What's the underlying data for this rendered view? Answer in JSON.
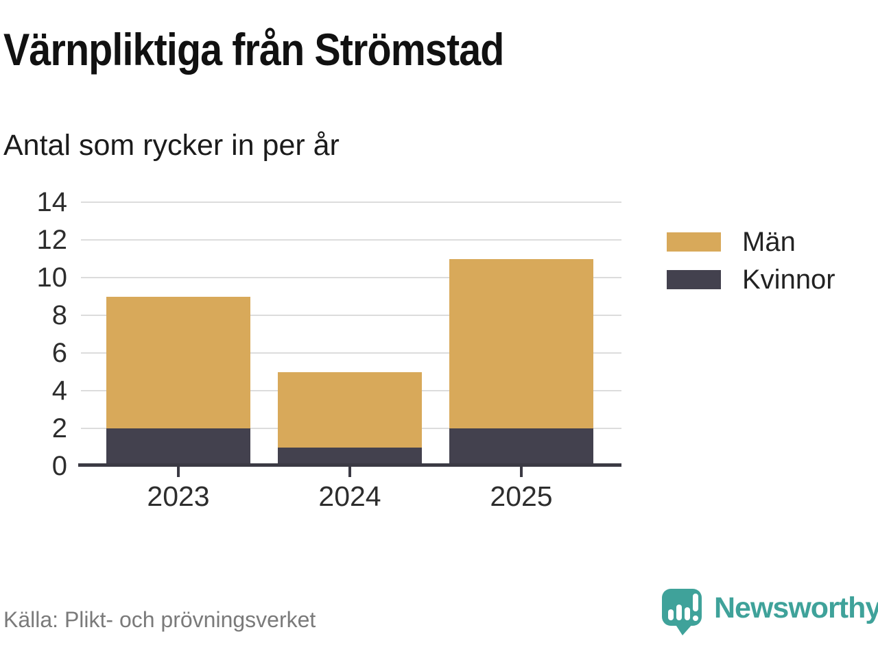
{
  "title": "Värnpliktiga från Strömstad",
  "subtitle": "Antal som rycker in per år",
  "source": "Källa: Plikt- och prövningsverket",
  "brand": {
    "name": "Newsworthy",
    "icon": "newsworthy-speech-bubble-bars-icon",
    "color": "#3fa29a"
  },
  "colors": {
    "men": "#d8a95a",
    "women": "#43414e",
    "axis": "#3b3a44",
    "grid": "#dcdcdc"
  },
  "legend": [
    {
      "label": "Män",
      "color": "#d8a95a"
    },
    {
      "label": "Kvinnor",
      "color": "#43414e"
    }
  ],
  "chart_data": {
    "type": "bar",
    "stacked": true,
    "title": "Värnpliktiga från Strömstad",
    "subtitle": "Antal som rycker in per år",
    "categories": [
      "2023",
      "2024",
      "2025"
    ],
    "series": [
      {
        "name": "Kvinnor",
        "color": "#43414e",
        "values": [
          2,
          1,
          2
        ]
      },
      {
        "name": "Män",
        "color": "#d8a95a",
        "values": [
          7,
          4,
          9
        ]
      }
    ],
    "totals": [
      9,
      5,
      11
    ],
    "xlabel": "",
    "ylabel": "",
    "ylim": [
      0,
      14
    ],
    "yticks": [
      0,
      2,
      4,
      6,
      8,
      10,
      12,
      14
    ],
    "grid": true,
    "legend_position": "right"
  }
}
